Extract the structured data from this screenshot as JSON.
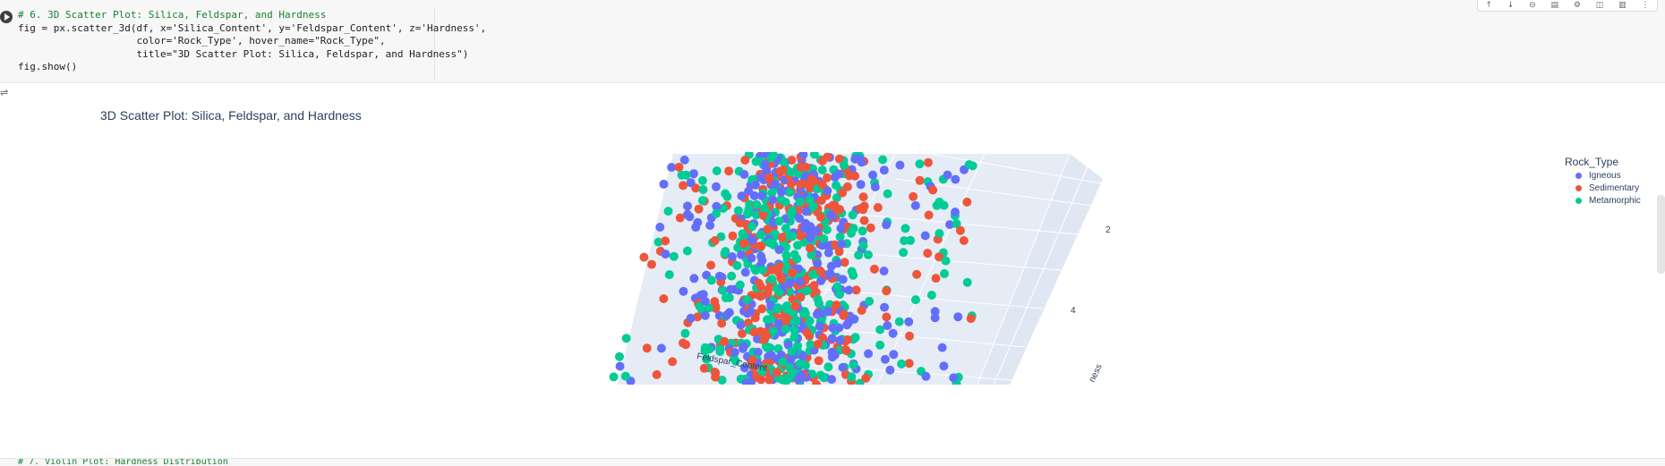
{
  "code_cell": {
    "lines": [
      "# 6. 3D Scatter Plot: Silica, Feldspar, and Hardness",
      "fig = px.scatter_3d(df, x='Silica_Content', y='Feldspar_Content', z='Hardness',",
      "                    color='Rock_Type', hover_name=\"Rock_Type\",",
      "                    title=\"3D Scatter Plot: Silica, Feldspar, and Hardness\")",
      "fig.show()"
    ]
  },
  "toolbar": {
    "icons": [
      "arrow-up-icon",
      "arrow-down-icon",
      "link-icon",
      "comment-icon",
      "gear-icon",
      "mirror-icon",
      "delete-icon",
      "more-icon"
    ]
  },
  "output": {
    "icon": "output-toggle-icon"
  },
  "chart_data": {
    "type": "scatter",
    "title": "3D Scatter Plot: Silica, Feldspar, and Hardness",
    "axes": {
      "y_label": "Feldspar_Content",
      "z_label_visible": "ness",
      "z_ticks": [
        "2",
        "4"
      ]
    },
    "legend": {
      "title": "Rock_Type",
      "placement": "top-right",
      "entries": [
        {
          "name": "Igneous",
          "color": "#636efa"
        },
        {
          "name": "Sedimentary",
          "color": "#ef553b"
        },
        {
          "name": "Metamorphic",
          "color": "#00cc96"
        }
      ]
    },
    "scene_background": "#e5ecf6"
  },
  "next_cell": {
    "text": "# 7. Violin Plot: Hardness Distribution"
  }
}
